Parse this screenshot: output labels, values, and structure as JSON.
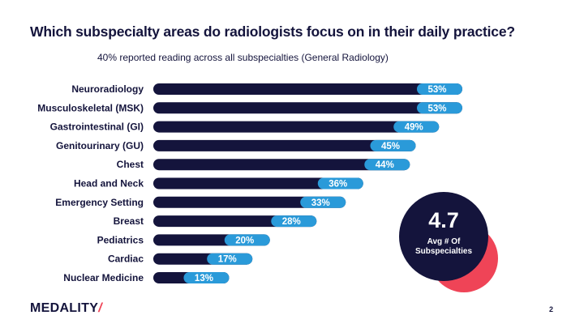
{
  "chart_data": {
    "type": "bar",
    "orientation": "horizontal",
    "title": "Which subspecialty areas do radiologists focus on in their daily practice?",
    "subtitle": "40% reported reading across all subspecialties (General Radiology)",
    "categories": [
      "Neuroradiology",
      "Musculoskeletal (MSK)",
      "Gastrointestinal (GI)",
      "Genitourinary (GU)",
      "Chest",
      "Head and Neck",
      "Emergency Setting",
      "Breast",
      "Pediatrics",
      "Cardiac",
      "Nuclear Medicine"
    ],
    "values": [
      53,
      53,
      49,
      45,
      44,
      36,
      33,
      28,
      20,
      17,
      13
    ],
    "value_labels": [
      "53%",
      "53%",
      "49%",
      "45%",
      "44%",
      "36%",
      "33%",
      "28%",
      "20%",
      "17%",
      "13%"
    ],
    "unit": "%",
    "xlim": [
      0,
      53
    ],
    "grid": false,
    "colors": {
      "bar": "#14143c",
      "label_pill": "#2a9ad9",
      "text": "#14143c"
    }
  },
  "stat": {
    "value": "4.7",
    "label": "Avg # Of Subspecialties",
    "colors": {
      "circle": "#14143c",
      "accent": "#ef4457"
    }
  },
  "brand": {
    "name": "MEDALITY",
    "mark": "/"
  },
  "page_number": "2"
}
